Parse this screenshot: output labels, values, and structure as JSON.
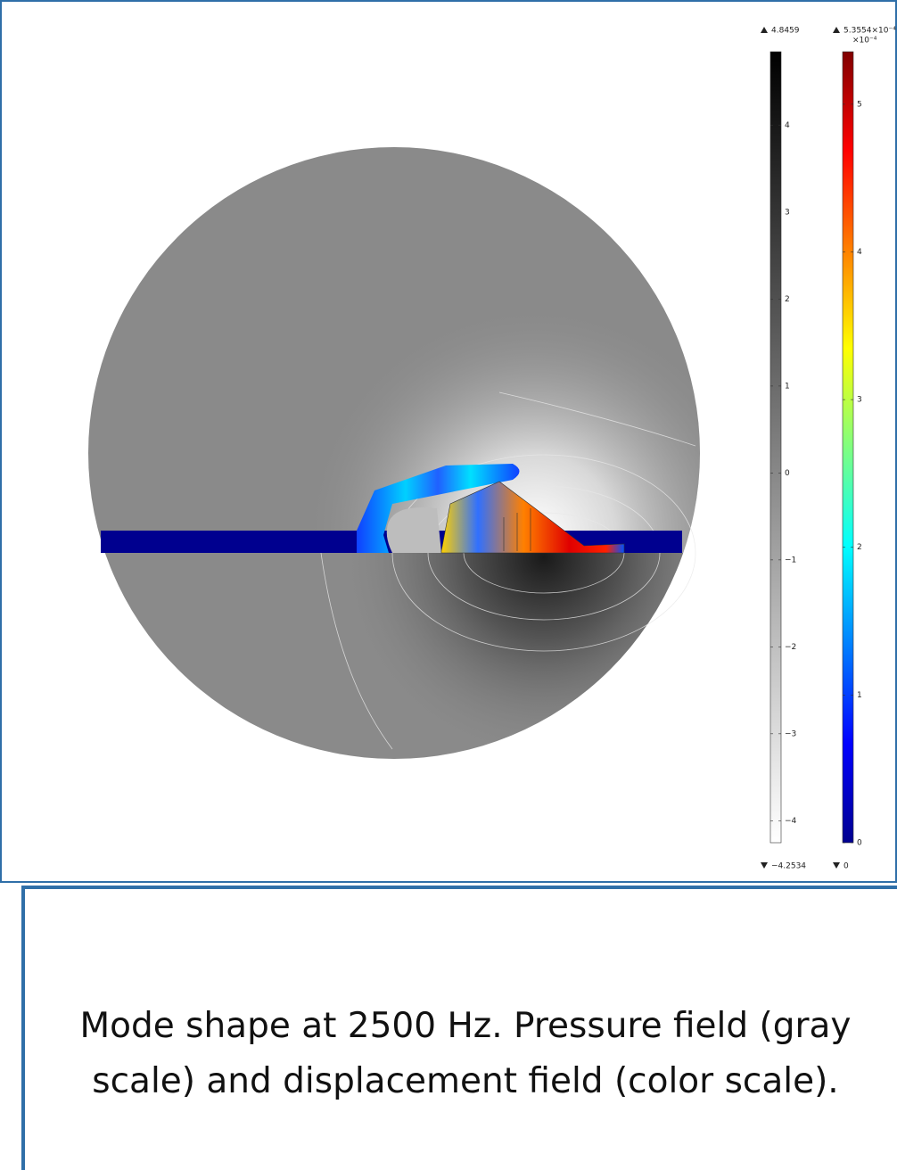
{
  "figure": {
    "pressure_colorbar": {
      "min": {
        "value": -4.2534,
        "label": "−4.2534"
      },
      "max": {
        "value": 4.8459,
        "label": "4.8459"
      },
      "ticks": [
        {
          "value": 4,
          "label": "4"
        },
        {
          "value": 3,
          "label": "3"
        },
        {
          "value": 2,
          "label": "2"
        },
        {
          "value": 1,
          "label": "1"
        },
        {
          "value": 0,
          "label": "0"
        },
        {
          "value": -1,
          "label": "−1"
        },
        {
          "value": -2,
          "label": "−2"
        },
        {
          "value": -3,
          "label": "−3"
        },
        {
          "value": -4,
          "label": "−4"
        }
      ]
    },
    "displacement_colorbar": {
      "multiplier": "×10⁻⁴",
      "min": {
        "value": 0,
        "label": "0"
      },
      "max": {
        "value": 5.3554,
        "label": "5.3554×10⁻⁴"
      },
      "ticks": [
        5,
        4,
        3,
        2,
        1,
        0
      ]
    }
  },
  "caption": {
    "lines": [
      "Mode shape at 2500 Hz. Pressure field (gray",
      "scale) and displacement field (color scale)."
    ]
  }
}
